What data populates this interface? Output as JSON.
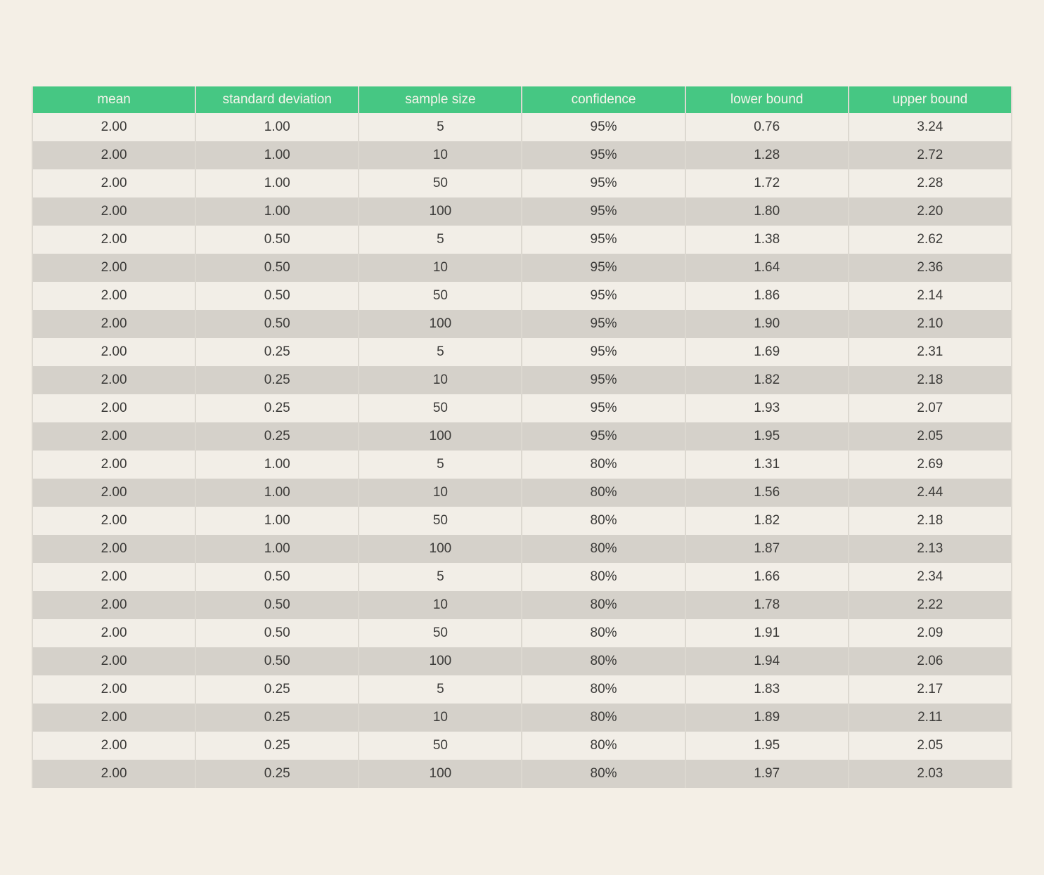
{
  "colors": {
    "page_background": "#f4efe6",
    "header_background": "#46c783",
    "header_text": "#f7f4ec",
    "row_light": "#f2eee7",
    "row_dark": "#d5d1ca",
    "cell_border": "#dcd8d0",
    "cell_text": "#3c3b39"
  },
  "chart_data": {
    "type": "table",
    "columns": [
      "mean",
      "standard deviation",
      "sample size",
      "confidence",
      "lower bound",
      "upper bound"
    ],
    "rows": [
      [
        "2.00",
        "1.00",
        "5",
        "95%",
        "0.76",
        "3.24"
      ],
      [
        "2.00",
        "1.00",
        "10",
        "95%",
        "1.28",
        "2.72"
      ],
      [
        "2.00",
        "1.00",
        "50",
        "95%",
        "1.72",
        "2.28"
      ],
      [
        "2.00",
        "1.00",
        "100",
        "95%",
        "1.80",
        "2.20"
      ],
      [
        "2.00",
        "0.50",
        "5",
        "95%",
        "1.38",
        "2.62"
      ],
      [
        "2.00",
        "0.50",
        "10",
        "95%",
        "1.64",
        "2.36"
      ],
      [
        "2.00",
        "0.50",
        "50",
        "95%",
        "1.86",
        "2.14"
      ],
      [
        "2.00",
        "0.50",
        "100",
        "95%",
        "1.90",
        "2.10"
      ],
      [
        "2.00",
        "0.25",
        "5",
        "95%",
        "1.69",
        "2.31"
      ],
      [
        "2.00",
        "0.25",
        "10",
        "95%",
        "1.82",
        "2.18"
      ],
      [
        "2.00",
        "0.25",
        "50",
        "95%",
        "1.93",
        "2.07"
      ],
      [
        "2.00",
        "0.25",
        "100",
        "95%",
        "1.95",
        "2.05"
      ],
      [
        "2.00",
        "1.00",
        "5",
        "80%",
        "1.31",
        "2.69"
      ],
      [
        "2.00",
        "1.00",
        "10",
        "80%",
        "1.56",
        "2.44"
      ],
      [
        "2.00",
        "1.00",
        "50",
        "80%",
        "1.82",
        "2.18"
      ],
      [
        "2.00",
        "1.00",
        "100",
        "80%",
        "1.87",
        "2.13"
      ],
      [
        "2.00",
        "0.50",
        "5",
        "80%",
        "1.66",
        "2.34"
      ],
      [
        "2.00",
        "0.50",
        "10",
        "80%",
        "1.78",
        "2.22"
      ],
      [
        "2.00",
        "0.50",
        "50",
        "80%",
        "1.91",
        "2.09"
      ],
      [
        "2.00",
        "0.50",
        "100",
        "80%",
        "1.94",
        "2.06"
      ],
      [
        "2.00",
        "0.25",
        "5",
        "80%",
        "1.83",
        "2.17"
      ],
      [
        "2.00",
        "0.25",
        "10",
        "80%",
        "1.89",
        "2.11"
      ],
      [
        "2.00",
        "0.25",
        "50",
        "80%",
        "1.95",
        "2.05"
      ],
      [
        "2.00",
        "0.25",
        "100",
        "80%",
        "1.97",
        "2.03"
      ]
    ]
  }
}
